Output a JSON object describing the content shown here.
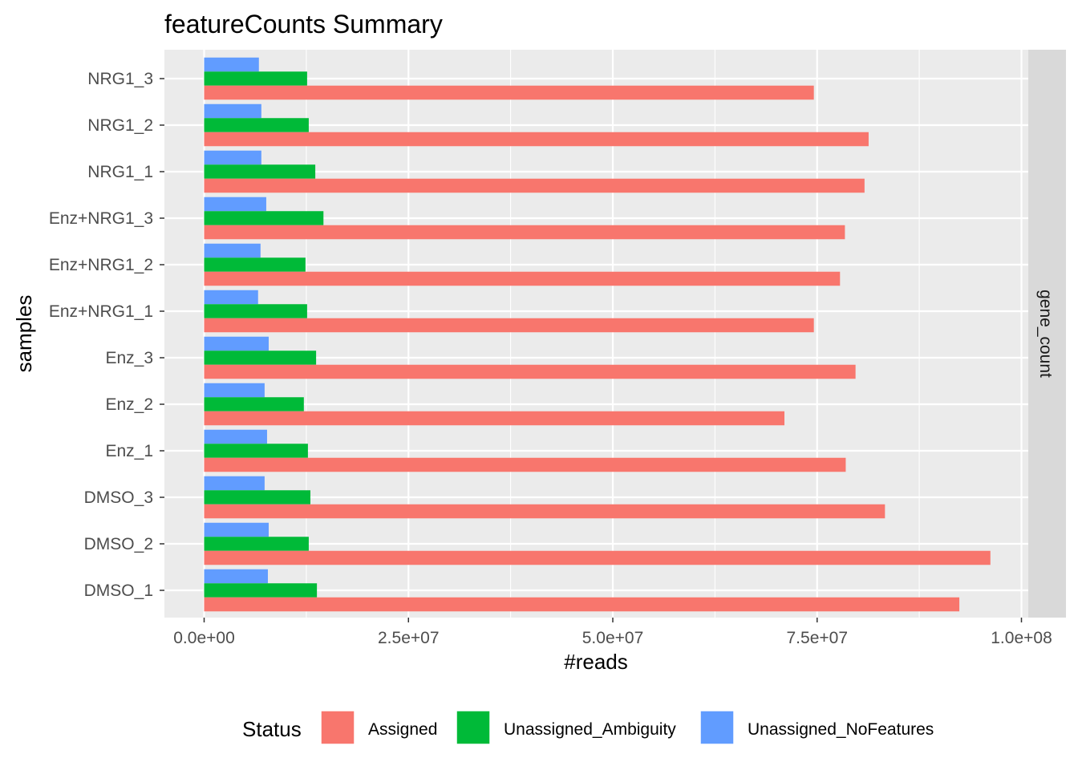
{
  "chart_data": {
    "type": "bar",
    "orientation": "horizontal",
    "title": "featureCounts Summary",
    "xlabel": "#reads",
    "ylabel": "samples",
    "facet_label": "gene_count",
    "legend_title": "Status",
    "legend_position": "bottom",
    "grid": true,
    "xlim": [
      0,
      100000000
    ],
    "x_ticks": [
      0,
      25000000,
      50000000,
      75000000,
      100000000
    ],
    "x_tick_labels": [
      "0.0e+00",
      "2.5e+07",
      "5.0e+07",
      "7.5e+07",
      "1.0e+08"
    ],
    "categories": [
      "NRG1_3",
      "NRG1_2",
      "NRG1_1",
      "Enz+NRG1_3",
      "Enz+NRG1_2",
      "Enz+NRG1_1",
      "Enz_3",
      "Enz_2",
      "Enz_1",
      "DMSO_3",
      "DMSO_2",
      "DMSO_1"
    ],
    "series": [
      {
        "name": "Unassigned_NoFeatures",
        "color": "#619CFF",
        "values": [
          6700000,
          7000000,
          7000000,
          7600000,
          6900000,
          6600000,
          7900000,
          7400000,
          7700000,
          7400000,
          7900000,
          7800000
        ]
      },
      {
        "name": "Unassigned_Ambiguity",
        "color": "#00BA38",
        "values": [
          12600000,
          12800000,
          13600000,
          14600000,
          12400000,
          12600000,
          13700000,
          12200000,
          12700000,
          13000000,
          12800000,
          13800000
        ]
      },
      {
        "name": "Assigned",
        "color": "#F8766D",
        "values": [
          74600000,
          81300000,
          80800000,
          78400000,
          77800000,
          74600000,
          79700000,
          71000000,
          78500000,
          83300000,
          96200000,
          92400000
        ]
      }
    ],
    "legend_order": [
      "Assigned",
      "Unassigned_Ambiguity",
      "Unassigned_NoFeatures"
    ]
  },
  "colors": {
    "panel_background": "#EBEBEB",
    "grid_major": "#FFFFFF",
    "strip_background": "#D9D9D9"
  }
}
